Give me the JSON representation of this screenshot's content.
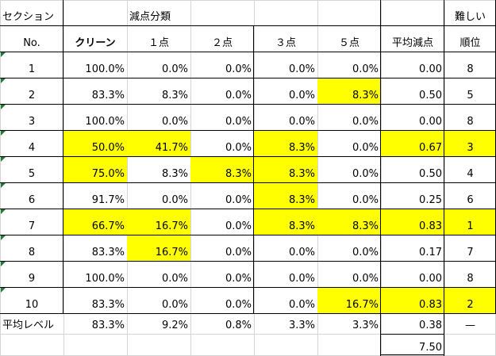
{
  "header1": {
    "section": "セクション",
    "category": "減点分類",
    "hardest": "難しい"
  },
  "header2": {
    "no": "No.",
    "clean": "クリーン",
    "p1": "１点",
    "p2": "２点",
    "p3": "３点",
    "p5": "５点",
    "avg": "平均減点",
    "rank": "順位"
  },
  "rows": [
    {
      "no": "1",
      "clean": "100.0%",
      "p1": "0.0%",
      "p2": "0.0%",
      "p3": "0.0%",
      "p5": "0.0%",
      "avg": "0.00",
      "rank": "8",
      "hl": []
    },
    {
      "no": "2",
      "clean": "83.3%",
      "p1": "8.3%",
      "p2": "0.0%",
      "p3": "0.0%",
      "p5": "8.3%",
      "avg": "0.50",
      "rank": "5",
      "hl": [
        "p5"
      ]
    },
    {
      "no": "3",
      "clean": "100.0%",
      "p1": "0.0%",
      "p2": "0.0%",
      "p3": "0.0%",
      "p5": "0.0%",
      "avg": "0.00",
      "rank": "8",
      "hl": []
    },
    {
      "no": "4",
      "clean": "50.0%",
      "p1": "41.7%",
      "p2": "0.0%",
      "p3": "8.3%",
      "p5": "0.0%",
      "avg": "0.67",
      "rank": "3",
      "hl": [
        "clean",
        "p1",
        "p3",
        "avg",
        "rank"
      ]
    },
    {
      "no": "5",
      "clean": "75.0%",
      "p1": "8.3%",
      "p2": "8.3%",
      "p3": "8.3%",
      "p5": "0.0%",
      "avg": "0.50",
      "rank": "4",
      "hl": [
        "clean",
        "p2",
        "p3"
      ]
    },
    {
      "no": "6",
      "clean": "91.7%",
      "p1": "0.0%",
      "p2": "0.0%",
      "p3": "8.3%",
      "p5": "0.0%",
      "avg": "0.25",
      "rank": "6",
      "hl": [
        "p3"
      ]
    },
    {
      "no": "7",
      "clean": "66.7%",
      "p1": "16.7%",
      "p2": "0.0%",
      "p3": "8.3%",
      "p5": "8.3%",
      "avg": "0.83",
      "rank": "1",
      "hl": [
        "clean",
        "p1",
        "p3",
        "p5",
        "avg",
        "rank"
      ]
    },
    {
      "no": "8",
      "clean": "83.3%",
      "p1": "16.7%",
      "p2": "0.0%",
      "p3": "0.0%",
      "p5": "0.0%",
      "avg": "0.17",
      "rank": "7",
      "hl": [
        "p1"
      ]
    },
    {
      "no": "9",
      "clean": "100.0%",
      "p1": "0.0%",
      "p2": "0.0%",
      "p3": "0.0%",
      "p5": "0.0%",
      "avg": "0.00",
      "rank": "8",
      "hl": []
    },
    {
      "no": "10",
      "clean": "83.3%",
      "p1": "0.0%",
      "p2": "0.0%",
      "p3": "0.0%",
      "p5": "16.7%",
      "avg": "0.83",
      "rank": "2",
      "hl": [
        "p5",
        "avg",
        "rank"
      ]
    }
  ],
  "summary": {
    "label": "平均レベル",
    "clean": "83.3%",
    "p1": "9.2%",
    "p2": "0.8%",
    "p3": "3.3%",
    "p5": "3.3%",
    "avg": "0.38",
    "rank": "—"
  },
  "total": {
    "avg": "7.50"
  },
  "colors": {
    "highlight": "#ffff00",
    "grid": "#d4d4d4",
    "border": "#000000",
    "marker": "#1e7b34"
  }
}
